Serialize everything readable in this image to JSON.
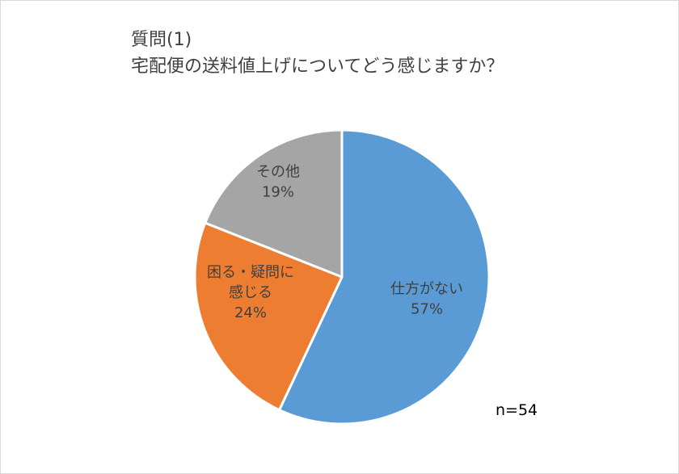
{
  "chart_data": {
    "type": "pie",
    "title_lines": [
      "質問(1)",
      "宅配便の送料値上げについてどう感じますか？"
    ],
    "slices": [
      {
        "label_lines": [
          "仕方がない"
        ],
        "percent_text": "57%",
        "value": 57,
        "color": "#5b9bd5"
      },
      {
        "label_lines": [
          "困る・疑問に",
          "感じる"
        ],
        "percent_text": "24%",
        "value": 24,
        "color": "#ed7d31"
      },
      {
        "label_lines": [
          "その他"
        ],
        "percent_text": "19%",
        "value": 19,
        "color": "#a5a5a5"
      }
    ],
    "note": "n=54",
    "start_angle": "top",
    "direction": "clockwise",
    "legend": "none"
  }
}
